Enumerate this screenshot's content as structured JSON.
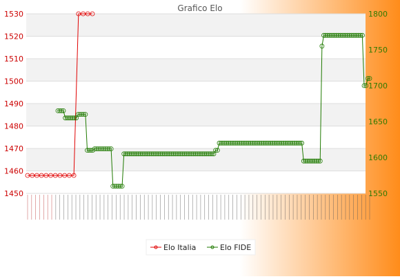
{
  "chart_data": {
    "type": "line",
    "title": "Grafico Elo",
    "background": {
      "left": "#ffffff",
      "right": "#ff8c1a"
    },
    "grid": true,
    "legend_position": "bottom",
    "x_tick_labels_note": "Dates printed vertically, overlapping and illegible in the original",
    "y_left": {
      "ticks": [
        1450,
        1460,
        1470,
        1480,
        1490,
        1500,
        1510,
        1520,
        1530
      ],
      "color": "#cc0000"
    },
    "y_right": {
      "ticks": [
        1550,
        1600,
        1650,
        1700,
        1750,
        1800
      ],
      "color": "#2f7a00"
    },
    "series": [
      {
        "name": "Elo Italia",
        "axis": "left",
        "color": "#e00000",
        "values": [
          1458,
          1458,
          1458,
          1458,
          1458,
          1458,
          1458,
          1458,
          1458,
          1458,
          1458,
          1530,
          1530,
          1530,
          1530
        ]
      },
      {
        "name": "Elo FIDE",
        "axis": "right",
        "color": "#1f7a00",
        "segments": [
          {
            "count": 4,
            "value": 1665
          },
          {
            "count": 7,
            "value": 1655
          },
          {
            "count": 5,
            "value": 1660
          },
          {
            "count": 4,
            "value": 1610
          },
          {
            "count": 5,
            "value": 1612
          },
          {
            "count": 5,
            "value": 1612
          },
          {
            "count": 6,
            "value": 1560
          },
          {
            "count": 40,
            "value": 1605
          },
          {
            "count": 10,
            "value": 1605
          },
          {
            "count": 2,
            "value": 1610
          },
          {
            "count": 38,
            "value": 1620
          },
          {
            "count": 8,
            "value": 1620
          },
          {
            "count": 10,
            "value": 1595
          },
          {
            "count": 1,
            "value": 1755
          },
          {
            "count": 22,
            "value": 1770
          },
          {
            "count": 2,
            "value": 1700
          },
          {
            "count": 2,
            "value": 1710
          }
        ]
      }
    ]
  }
}
